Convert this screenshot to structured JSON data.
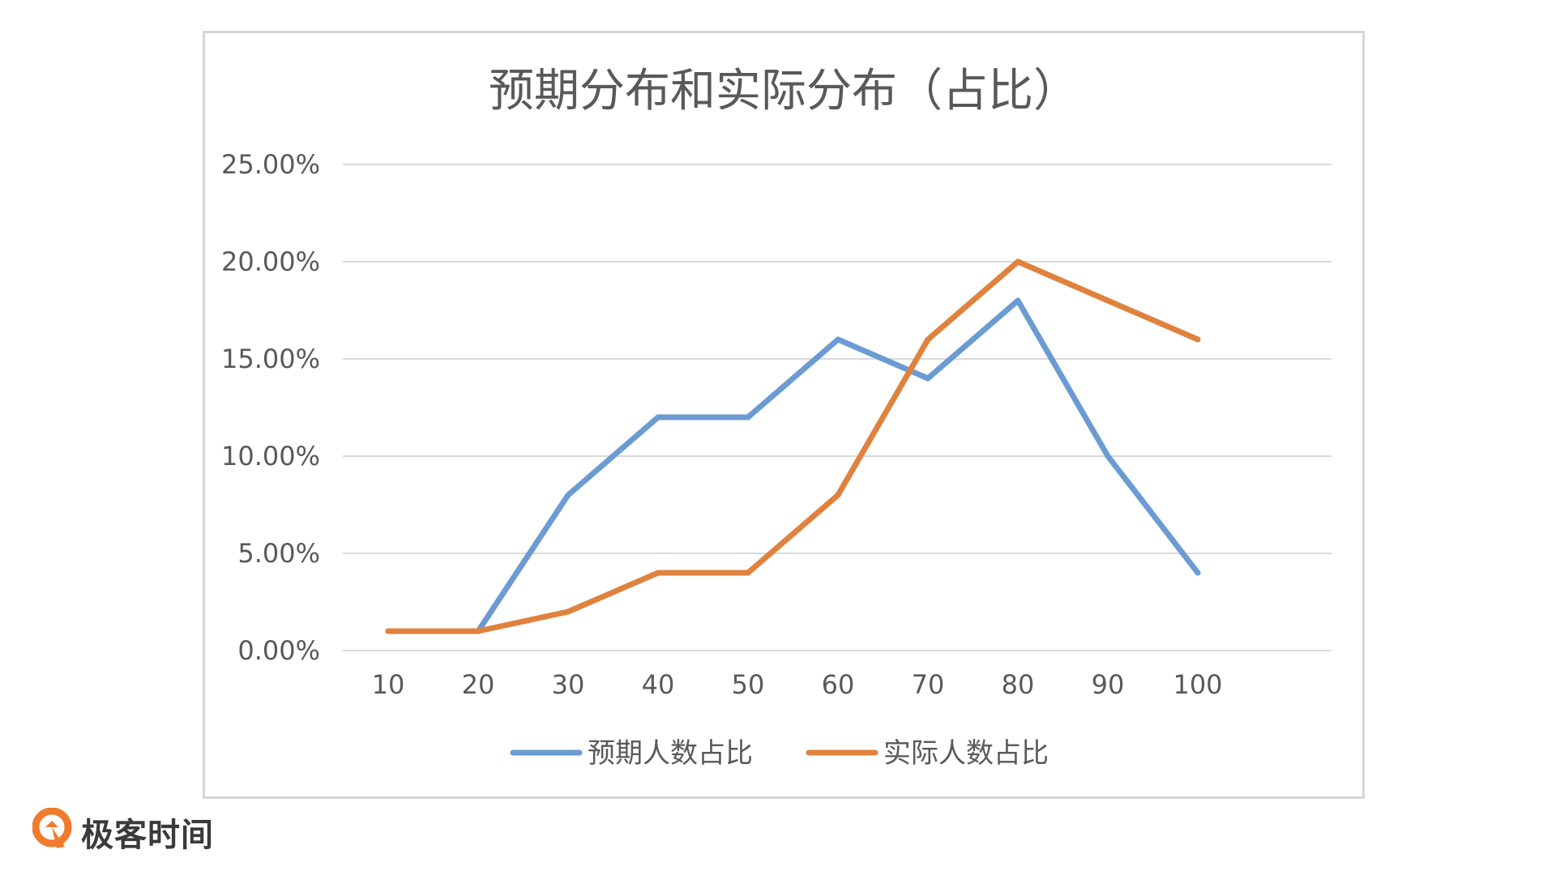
{
  "brand": {
    "name": "极客时间",
    "accent_color": "#f07b2c",
    "icon": "geektime-logo-icon"
  },
  "chart_data": {
    "type": "line",
    "title": "预期分布和实际分布（占比）",
    "xlabel": "",
    "ylabel": "",
    "categories": [
      "10",
      "20",
      "30",
      "40",
      "50",
      "60",
      "70",
      "80",
      "90",
      "100"
    ],
    "y_ticks": [
      "0.00%",
      "5.00%",
      "10.00%",
      "15.00%",
      "20.00%",
      "25.00%"
    ],
    "ylim": [
      0,
      25
    ],
    "y_unit": "%",
    "grid": true,
    "legend_position": "bottom",
    "series": [
      {
        "name": "预期人数占比",
        "color": "#6b9bd2",
        "values": [
          1,
          1,
          8,
          12,
          12,
          16,
          14,
          18,
          10,
          4
        ]
      },
      {
        "name": "实际人数占比",
        "color": "#e0823e",
        "values": [
          1,
          1,
          2,
          4,
          4,
          8,
          16,
          20,
          18,
          16
        ]
      }
    ]
  }
}
